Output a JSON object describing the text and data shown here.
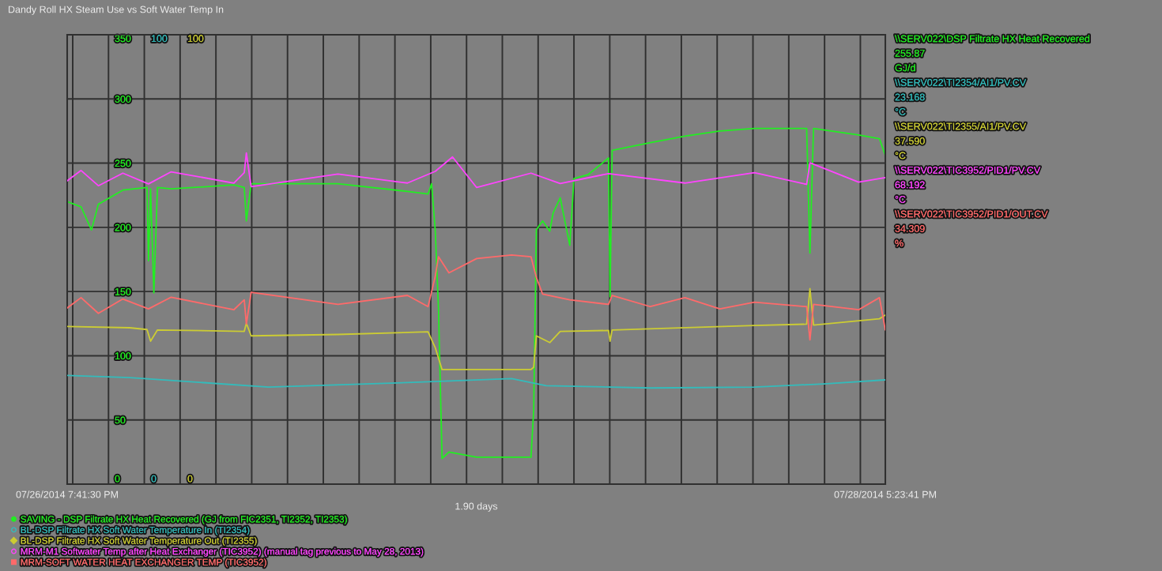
{
  "chart_data": {
    "type": "line",
    "title": "Dandy Roll HX Steam Use vs Soft Water Temp In",
    "xlim": [
      "2014-07-26T19:41:30",
      "2014-07-28T17:23:41"
    ],
    "xticks": [
      {
        "value": "2014-07-26T19:41:30",
        "label": "07/26/2014 7:41:30 PM"
      },
      {
        "value": "2014-07-26T20:00",
        "label": null
      },
      {
        "value": "2014-07-26T22:00",
        "label": null
      },
      {
        "value": "2014-07-27T00:00",
        "label": null
      },
      {
        "value": "2014-07-27T02:00",
        "label": null
      },
      {
        "value": "2014-07-27T04:00",
        "label": null
      },
      {
        "value": "2014-07-27T06:00",
        "label": null
      },
      {
        "value": "2014-07-27T08:00",
        "label": null
      },
      {
        "value": "2014-07-27T10:00",
        "label": null
      },
      {
        "value": "2014-07-27T12:00",
        "label": null
      },
      {
        "value": "2014-07-27T14:00",
        "label": null
      },
      {
        "value": "2014-07-27T16:00",
        "label": null
      },
      {
        "value": "2014-07-27T18:00",
        "label": null
      },
      {
        "value": "2014-07-27T20:00",
        "label": null
      },
      {
        "value": "2014-07-27T22:00",
        "label": null
      },
      {
        "value": "2014-07-28T00:00",
        "label": null
      },
      {
        "value": "2014-07-28T02:00",
        "label": null
      },
      {
        "value": "2014-07-28T04:00",
        "label": null
      },
      {
        "value": "2014-07-28T06:00",
        "label": null
      },
      {
        "value": "2014-07-28T08:00",
        "label": null
      },
      {
        "value": "2014-07-28T10:00",
        "label": null
      },
      {
        "value": "2014-07-28T12:00",
        "label": null
      },
      {
        "value": "2014-07-28T14:00",
        "label": null
      },
      {
        "value": "2014-07-28T16:00",
        "label": null
      },
      {
        "value": "2014-07-28T17:23:41",
        "label": "07/28/2014 5:23:41 PM"
      }
    ],
    "ylim": [
      0,
      350
    ],
    "yticks": [
      0,
      50,
      100,
      150,
      200,
      250,
      300,
      350
    ],
    "y2lim": [
      0,
      100
    ],
    "y2ticks": [
      0,
      100
    ],
    "y3lim": [
      0,
      100
    ],
    "y3ticks": [
      0,
      100
    ],
    "grid": true,
    "legend": "bottom",
    "series": [
      {
        "name": "SAVING - DSP Filtrate HX Heat Recovered (GJ from FIC2351, TI2352, TI2353)",
        "color": "#22ee22",
        "axis": "y",
        "x": [
          "2014-07-26T19:41:30",
          "2014-07-26T20:28",
          "2014-07-26T21:03",
          "2014-07-26T21:26",
          "2014-07-26T22:48",
          "2014-07-27T00:09",
          "2014-07-27T00:14",
          "2014-07-27T00:21",
          "2014-07-27T00:32",
          "2014-07-27T00:44",
          "2014-07-27T01:30",
          "2014-07-27T05:00",
          "2014-07-27T05:35",
          "2014-07-27T05:42",
          "2014-07-27T05:58",
          "2014-07-27T10:49",
          "2014-07-27T14:42",
          "2014-07-27T15:51",
          "2014-07-27T16:03",
          "2014-07-27T16:15",
          "2014-07-27T16:26",
          "2014-07-27T16:38",
          "2014-07-27T17:01",
          "2014-07-27T18:34",
          "2014-07-27T21:36",
          "2014-07-27T21:45",
          "2014-07-27T21:54",
          "2014-07-27T22:15",
          "2014-07-27T22:39",
          "2014-07-27T22:50",
          "2014-07-27T23:14",
          "2014-07-27T23:46",
          "2014-07-28T00:00",
          "2014-07-28T00:47",
          "2014-07-28T01:56",
          "2014-07-28T02:01",
          "2014-07-28T02:08",
          "2014-07-28T04:16",
          "2014-07-28T06:12",
          "2014-07-28T08:09",
          "2014-07-28T10:05",
          "2014-07-28T13:00",
          "2014-07-28T13:11",
          "2014-07-28T13:23",
          "2014-07-28T15:54",
          "2014-07-28T17:04",
          "2014-07-28T17:23:41"
        ],
        "values": [
          220,
          216,
          198,
          218,
          229,
          231,
          174,
          230,
          149,
          231,
          230,
          233,
          231,
          205,
          234,
          234,
          228,
          226,
          234,
          198,
          137,
          20,
          25,
          21,
          21,
          57,
          198,
          205,
          197,
          211,
          223,
          186,
          238,
          241,
          254,
          146,
          260,
          266,
          271,
          275,
          277,
          277,
          180,
          277,
          272,
          269,
          256
        ]
      },
      {
        "name": "BL-DSP Filtrate HX Soft Water Temperature In (TI2354)",
        "color": "#33bbbb",
        "axis": "y2",
        "x": [
          "2014-07-26T19:41:30",
          "2014-07-26T23:11",
          "2014-07-27T06:56",
          "2014-07-27T14:42",
          "2014-07-27T20:31",
          "2014-07-27T22:27",
          "2014-07-28T04:16",
          "2014-07-28T10:05",
          "2014-07-28T13:58",
          "2014-07-28T17:23:41"
        ],
        "values": [
          24.2,
          23.7,
          21.6,
          22.6,
          23.5,
          21.9,
          21.4,
          21.6,
          22.3,
          23.2
        ]
      },
      {
        "name": "BL-DSP Filtrate HX Soft Water Temperature Out (TI2355)",
        "color": "#cccc33",
        "axis": "y3",
        "x": [
          "2014-07-26T19:41:30",
          "2014-07-26T23:11",
          "2014-07-27T00:09",
          "2014-07-27T00:21",
          "2014-07-27T00:44",
          "2014-07-27T05:35",
          "2014-07-27T05:42",
          "2014-07-27T05:58",
          "2014-07-27T10:49",
          "2014-07-27T15:51",
          "2014-07-27T16:15",
          "2014-07-27T16:38",
          "2014-07-27T21:36",
          "2014-07-27T21:45",
          "2014-07-27T21:54",
          "2014-07-27T22:39",
          "2014-07-27T23:14",
          "2014-07-28T01:56",
          "2014-07-28T02:01",
          "2014-07-28T02:08",
          "2014-07-28T10:05",
          "2014-07-28T13:00",
          "2014-07-28T13:11",
          "2014-07-28T13:23",
          "2014-07-28T17:04",
          "2014-07-28T17:23:41"
        ],
        "values": [
          35.1,
          34.8,
          34.4,
          31.8,
          34.3,
          34.0,
          35.8,
          33.0,
          33.3,
          33.9,
          30.4,
          25.5,
          25.5,
          26.0,
          33.0,
          31.5,
          34.0,
          34.2,
          31.8,
          34.3,
          35.3,
          35.6,
          43.5,
          35.4,
          36.8,
          37.6
        ]
      },
      {
        "name": "MRM-M1 Softwater Temp after Heat Exchanger (TIC3952) (manual tag previous to May 28, 2013)",
        "color": "#ff44ff",
        "axis": "y2",
        "x": [
          "2014-07-26T19:41:30",
          "2014-07-26T20:28",
          "2014-07-26T21:26",
          "2014-07-26T22:48",
          "2014-07-27T00:14",
          "2014-07-27T01:30",
          "2014-07-27T05:00",
          "2014-07-27T05:35",
          "2014-07-27T05:42",
          "2014-07-27T05:58",
          "2014-07-27T10:49",
          "2014-07-27T14:42",
          "2014-07-27T16:15",
          "2014-07-27T17:13",
          "2014-07-27T18:34",
          "2014-07-27T21:36",
          "2014-07-27T23:14",
          "2014-07-28T01:56",
          "2014-07-28T06:12",
          "2014-07-28T10:05",
          "2014-07-28T13:00",
          "2014-07-28T13:11",
          "2014-07-28T15:54",
          "2014-07-28T17:23:41"
        ],
        "values": [
          67.5,
          69.8,
          66.4,
          69.2,
          66.8,
          69.5,
          67.0,
          69.3,
          73.7,
          66.2,
          69.0,
          67.0,
          69.6,
          72.8,
          66.0,
          69.2,
          66.9,
          69.1,
          67.0,
          69.3,
          66.7,
          71.5,
          67.2,
          68.2
        ]
      },
      {
        "name": "MRM-SOFT WATER HEAT EXCHANGER TEMP (TIC3952)",
        "color": "#ff6a6a",
        "axis": "y3",
        "x": [
          "2014-07-26T19:41:30",
          "2014-07-26T20:28",
          "2014-07-26T21:26",
          "2014-07-26T22:48",
          "2014-07-27T00:14",
          "2014-07-27T01:30",
          "2014-07-27T05:00",
          "2014-07-27T05:35",
          "2014-07-27T05:42",
          "2014-07-27T05:58",
          "2014-07-27T10:49",
          "2014-07-27T14:42",
          "2014-07-27T15:51",
          "2014-07-27T16:15",
          "2014-07-27T16:26",
          "2014-07-27T17:01",
          "2014-07-27T18:34",
          "2014-07-27T20:31",
          "2014-07-27T21:36",
          "2014-07-27T21:54",
          "2014-07-27T22:15",
          "2014-07-27T23:46",
          "2014-07-28T01:56",
          "2014-07-28T02:08",
          "2014-07-28T04:16",
          "2014-07-28T06:12",
          "2014-07-28T08:09",
          "2014-07-28T10:05",
          "2014-07-28T13:00",
          "2014-07-28T13:11",
          "2014-07-28T13:23",
          "2014-07-28T15:54",
          "2014-07-28T17:04",
          "2014-07-28T17:23:41"
        ],
        "values": [
          39.2,
          41.5,
          38.0,
          41.2,
          39.0,
          41.6,
          38.8,
          41.0,
          35.6,
          42.7,
          40.0,
          42.0,
          39.5,
          46.2,
          50.6,
          47.0,
          50.2,
          51.0,
          50.6,
          46.0,
          42.3,
          41.0,
          40.0,
          42.0,
          39.5,
          41.5,
          39.0,
          40.5,
          39.5,
          32.1,
          40.0,
          38.8,
          41.5,
          34.3
        ]
      }
    ],
    "annotations": [
      "\\\\SERV022\\DSP Filtrate HX Heat Recovered",
      "255.87",
      "GJ/d",
      "\\\\SERV022\\TI2354/AI1/PV.CV",
      "23.168",
      "°C",
      "\\\\SERV022\\TI2355/AI1/PV.CV",
      "37.590",
      "°C",
      "\\\\SERV022\\TIC3952/PID1/PV.CV",
      "68.192",
      "°C",
      "\\\\SERV022\\TIC3952/PID1/OUT.CV",
      "34.309",
      "%",
      "1.90 days"
    ]
  }
}
